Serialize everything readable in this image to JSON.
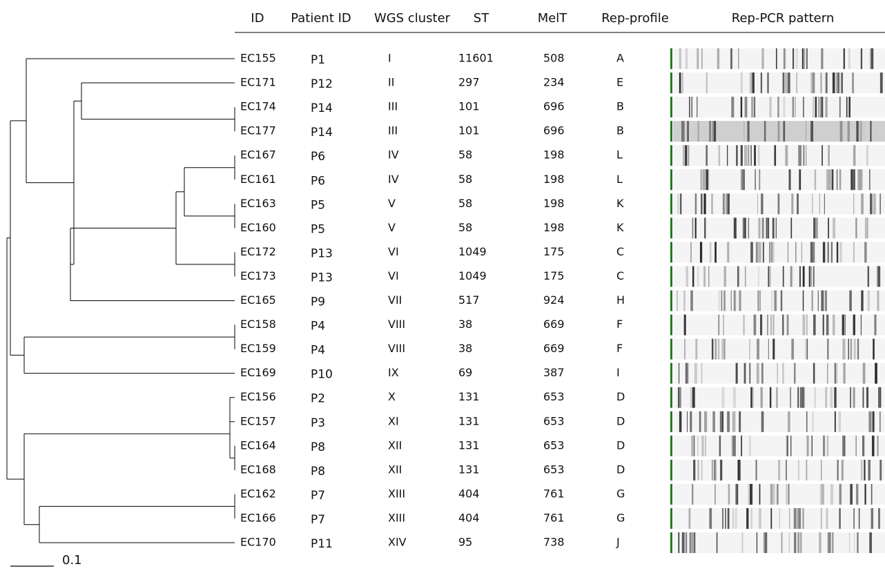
{
  "table": {
    "headers": [
      "ID",
      "Patient ID",
      "WGS cluster",
      "ST",
      "MelT",
      "Rep-profile",
      "Rep-PCR pattern"
    ],
    "rows": [
      [
        "EC155",
        "P1",
        "I",
        11601,
        508,
        "A"
      ],
      [
        "EC171",
        "P12",
        "II",
        297,
        234,
        "E"
      ],
      [
        "EC174",
        "P14",
        "III",
        101,
        696,
        "B"
      ],
      [
        "EC177",
        "P14",
        "III",
        101,
        696,
        "B"
      ],
      [
        "EC167",
        "P6",
        "IV",
        58,
        198,
        "L"
      ],
      [
        "EC161",
        "P6",
        "IV",
        58,
        198,
        "L"
      ],
      [
        "EC163",
        "P5",
        "V",
        58,
        198,
        "K"
      ],
      [
        "EC160",
        "P5",
        "V",
        58,
        198,
        "K"
      ],
      [
        "EC172",
        "P13",
        "VI",
        1049,
        175,
        "C"
      ],
      [
        "EC173",
        "P13",
        "VI",
        1049,
        175,
        "C"
      ],
      [
        "EC165",
        "P9",
        "VII",
        517,
        924,
        "H"
      ],
      [
        "EC158",
        "P4",
        "VIII",
        38,
        669,
        "F"
      ],
      [
        "EC159",
        "P4",
        "VIII",
        38,
        669,
        "F"
      ],
      [
        "EC169",
        "P10",
        "IX",
        69,
        387,
        "I"
      ],
      [
        "EC156",
        "P2",
        "X",
        131,
        653,
        "D"
      ],
      [
        "EC157",
        "P3",
        "XI",
        131,
        653,
        "D"
      ],
      [
        "EC164",
        "P8",
        "XII",
        131,
        653,
        "D"
      ],
      [
        "EC168",
        "P8",
        "XII",
        131,
        653,
        "D"
      ],
      [
        "EC162",
        "P7",
        "XIII",
        404,
        761,
        "G"
      ],
      [
        "EC166",
        "P7",
        "XIII",
        404,
        761,
        "G"
      ],
      [
        "EC170",
        "P11",
        "XIV",
        95,
        738,
        "J"
      ]
    ]
  },
  "scale_bar_label": "0.1"
}
